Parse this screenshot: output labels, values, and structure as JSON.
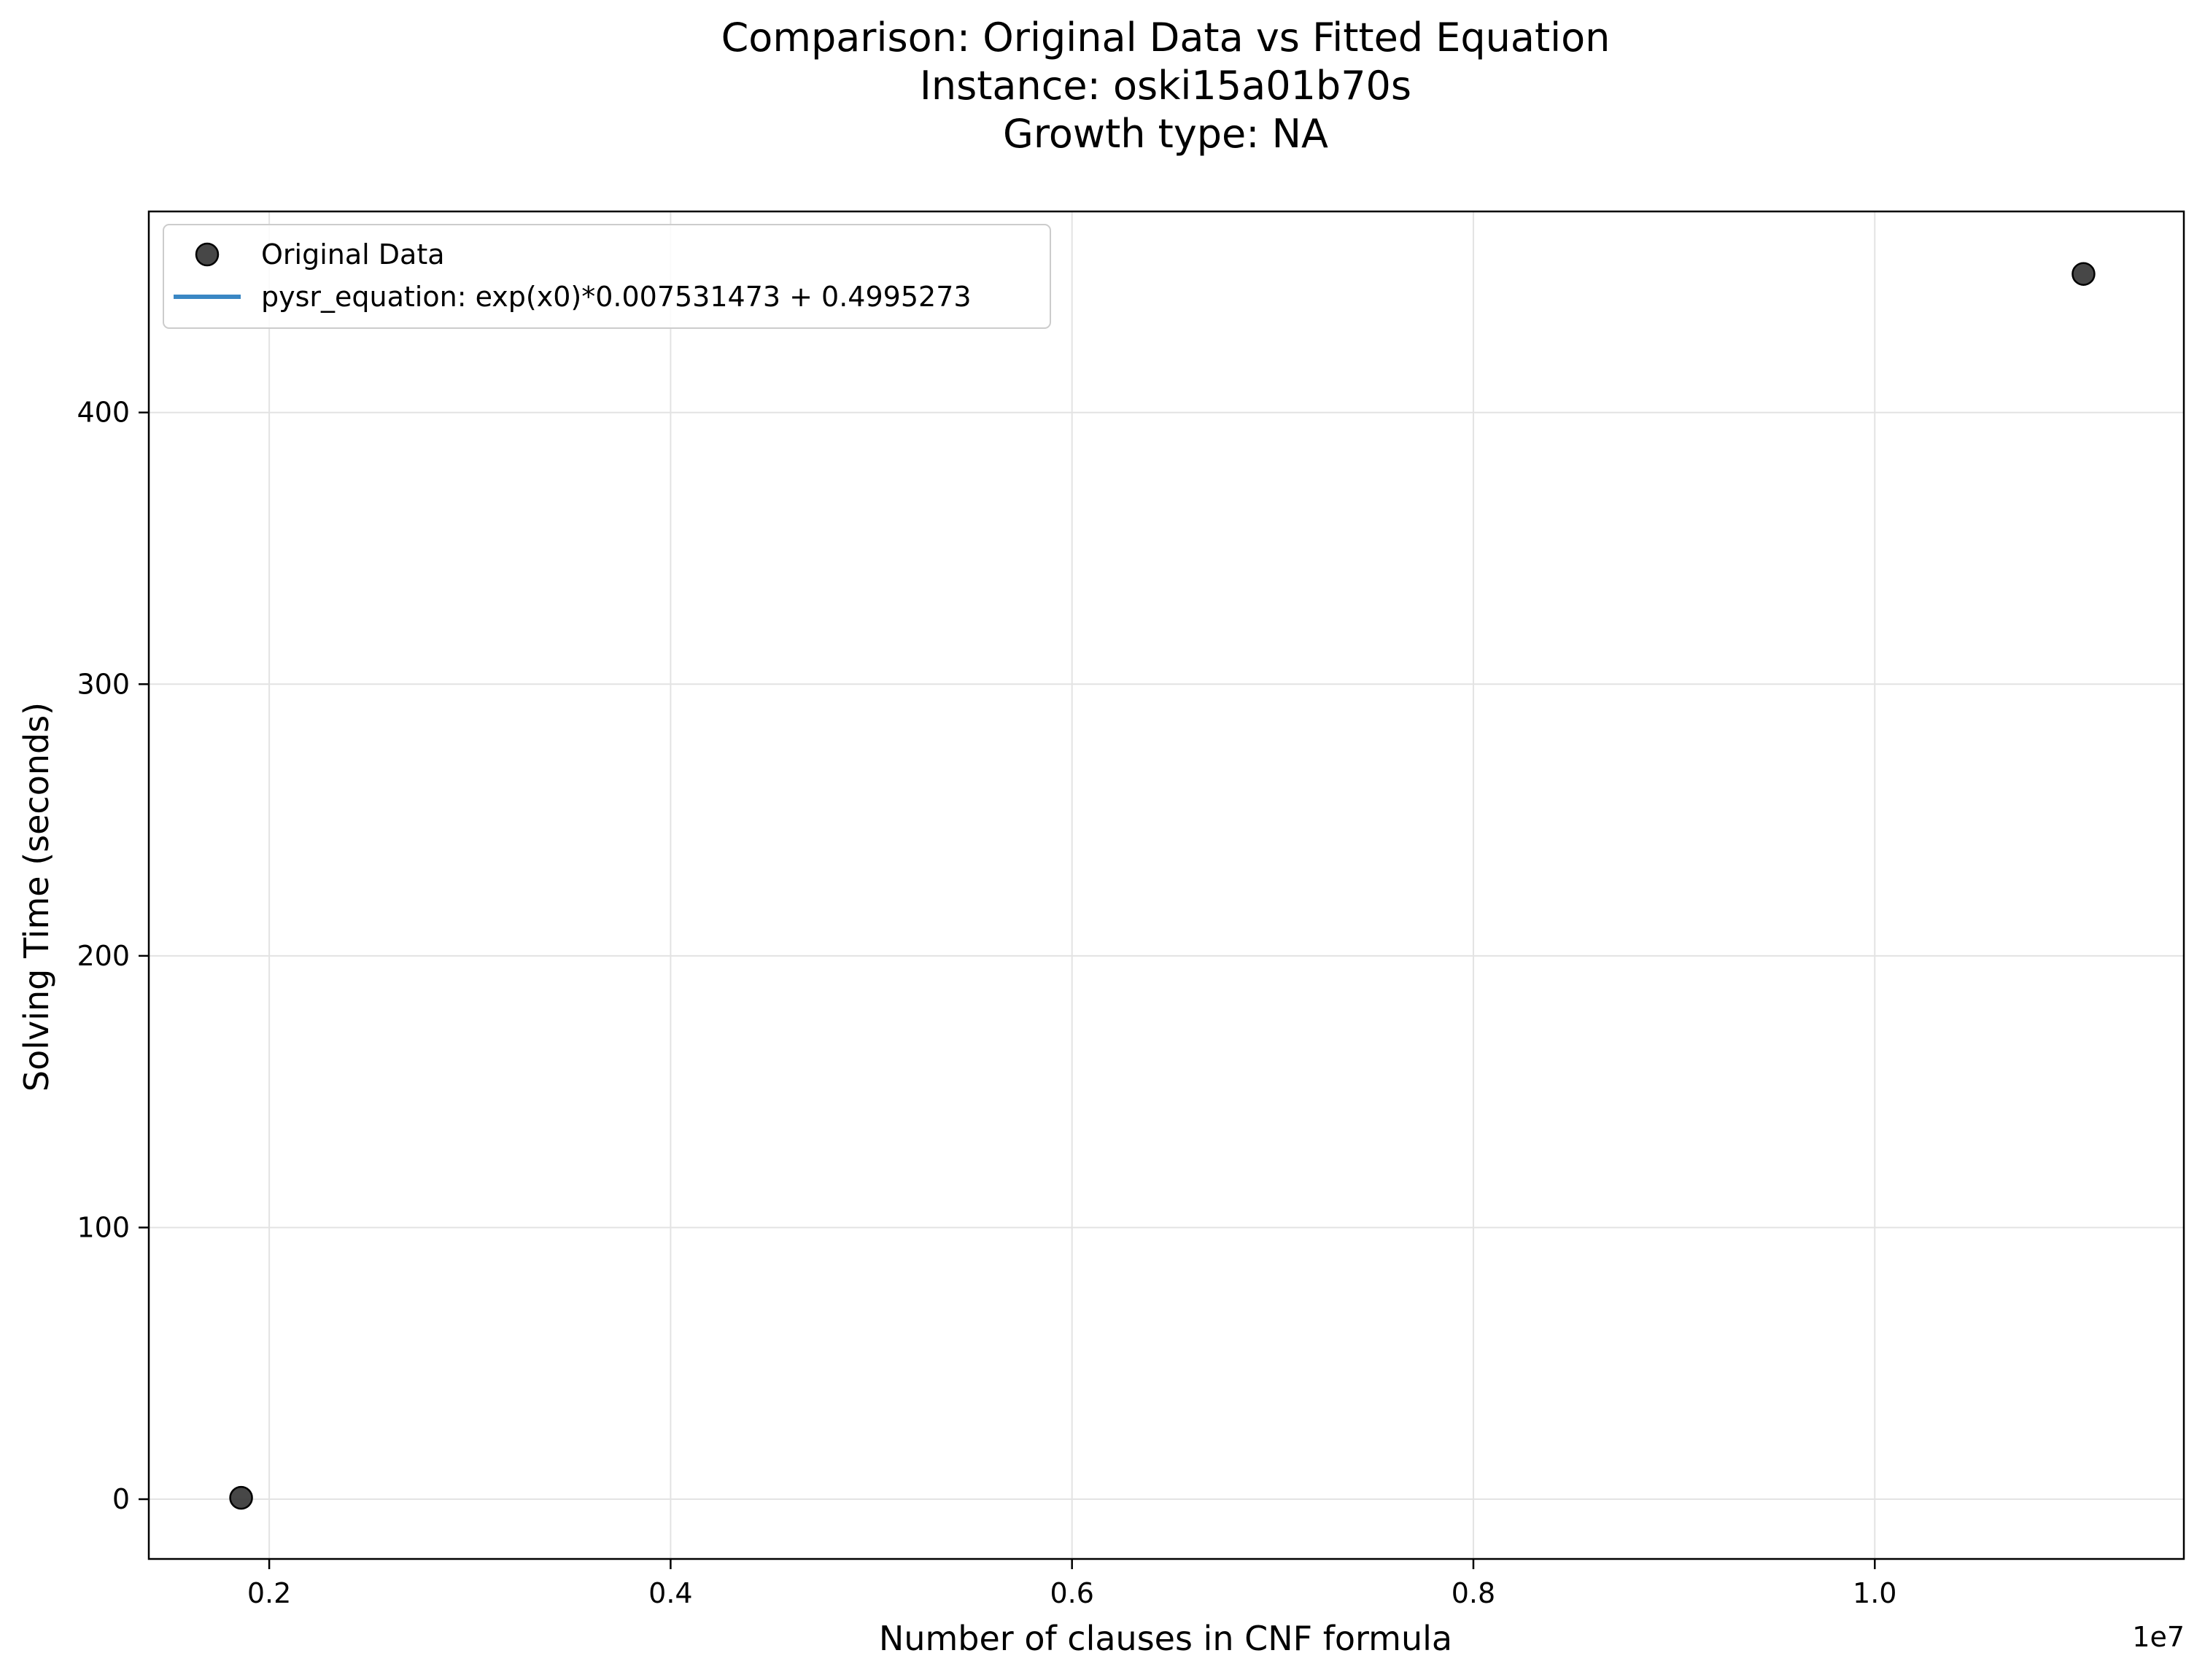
{
  "chart_data": {
    "type": "scatter",
    "title": [
      "Comparison: Original Data vs Fitted Equation",
      "Instance: oski15a01b70s",
      "Growth type: NA"
    ],
    "xlabel": "Number of clauses in CNF formula",
    "ylabel": "Solving Time (seconds)",
    "x_offset_label": "1e7",
    "xlim": [
      0.14,
      1.154
    ],
    "ylim": [
      -22,
      474
    ],
    "xticks": [
      0.2,
      0.4,
      0.6,
      0.8,
      1.0
    ],
    "xtick_labels": [
      "0.2",
      "0.4",
      "0.6",
      "0.8",
      "1.0"
    ],
    "yticks": [
      0,
      100,
      200,
      300,
      400
    ],
    "ytick_labels": [
      "0",
      "100",
      "200",
      "300",
      "400"
    ],
    "grid": true,
    "legend_placement": "upper-left",
    "series": [
      {
        "name": "Original Data",
        "kind": "scatter",
        "color": "#333333",
        "x": [
          0.186,
          1.104
        ],
        "y": [
          0.5,
          451
        ]
      },
      {
        "name": "pysr_equation: exp(x0)*0.007531473 + 0.4995273",
        "kind": "line",
        "color": "#3a87c4",
        "x": [],
        "y": []
      }
    ]
  }
}
